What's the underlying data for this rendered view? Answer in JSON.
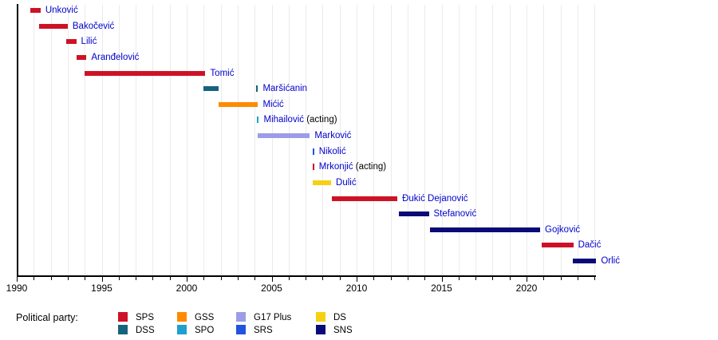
{
  "chart_data": {
    "type": "bar",
    "subtype": "timeline-gantt",
    "title": "",
    "xlabel": "",
    "ylabel": "",
    "x_axis": {
      "min": 1990,
      "max": 2024,
      "major_ticks": [
        1990,
        1995,
        2000,
        2005,
        2010,
        2015,
        2020
      ],
      "minor_tick_interval": 1,
      "grid": true
    },
    "parties": {
      "SPS": "#CE1126",
      "DSS": "#16637E",
      "GSS": "#FF8A00",
      "SPO": "#1FA0CE",
      "G17 Plus": "#9C9CE8",
      "SRS": "#2153DE",
      "DS": "#F6D013",
      "SNS": "#0A0A78"
    },
    "rows": [
      {
        "name": "Unković",
        "suffix": "",
        "party": "SPS",
        "segments": [
          [
            1990.8,
            1991.4
          ]
        ]
      },
      {
        "name": "Bakočević",
        "suffix": "",
        "party": "SPS",
        "segments": [
          [
            1991.3,
            1993.0
          ]
        ]
      },
      {
        "name": "Lilić",
        "suffix": "",
        "party": "SPS",
        "segments": [
          [
            1992.9,
            1993.5
          ]
        ]
      },
      {
        "name": "Aranđelović",
        "suffix": "",
        "party": "SPS",
        "segments": [
          [
            1993.5,
            1994.1
          ]
        ]
      },
      {
        "name": "Tomić",
        "suffix": "",
        "party": "SPS",
        "segments": [
          [
            1994.0,
            2001.1
          ]
        ]
      },
      {
        "name": "Maršićanin",
        "suffix": "",
        "party": "DSS",
        "segments": [
          [
            2001.0,
            2001.9
          ],
          [
            2004.1,
            2004.2
          ]
        ]
      },
      {
        "name": "Mićić",
        "suffix": "",
        "party": "GSS",
        "segments": [
          [
            2001.9,
            2004.2
          ]
        ]
      },
      {
        "name": "Mihailović",
        "suffix": " (acting)",
        "party": "SPO",
        "segments": [
          [
            2004.15,
            2004.25
          ]
        ]
      },
      {
        "name": "Marković",
        "suffix": "",
        "party": "G17 Plus",
        "segments": [
          [
            2004.2,
            2007.25
          ]
        ]
      },
      {
        "name": "Nikolić",
        "suffix": "",
        "party": "SRS",
        "segments": [
          [
            2007.4,
            2007.5
          ]
        ]
      },
      {
        "name": "Mrkonjić",
        "suffix": " (acting)",
        "party": "SPS",
        "segments": [
          [
            2007.4,
            2007.5
          ]
        ]
      },
      {
        "name": "Dulić",
        "suffix": "",
        "party": "DS",
        "segments": [
          [
            2007.4,
            2008.5
          ]
        ]
      },
      {
        "name": "Đukić Dejanović",
        "suffix": "",
        "party": "SPS",
        "segments": [
          [
            2008.55,
            2012.4
          ]
        ]
      },
      {
        "name": "Stefanović",
        "suffix": "",
        "party": "SNS",
        "segments": [
          [
            2012.5,
            2014.25
          ]
        ]
      },
      {
        "name": "Gojković",
        "suffix": "",
        "party": "SNS",
        "segments": [
          [
            2014.3,
            2020.8
          ]
        ]
      },
      {
        "name": "Dačić",
        "suffix": "",
        "party": "SPS",
        "segments": [
          [
            2020.9,
            2022.75
          ]
        ]
      },
      {
        "name": "Orlić",
        "suffix": "",
        "party": "SNS",
        "segments": [
          [
            2022.7,
            2024.1
          ]
        ]
      }
    ],
    "legend": {
      "label": "Political party:",
      "position": "bottom",
      "rows": [
        [
          "SPS",
          "GSS",
          "G17 Plus",
          "DS"
        ],
        [
          "DSS",
          "SPO",
          "SRS",
          "SNS"
        ]
      ]
    }
  },
  "colors": {
    "name_text": "#0000CC",
    "acting_text": "#000000",
    "axis": "#000000",
    "grid": "#EBEBEB",
    "background": "#FFFFFF"
  }
}
